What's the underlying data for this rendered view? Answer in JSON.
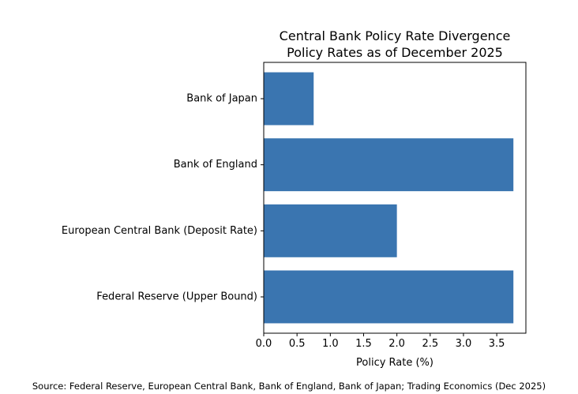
{
  "chart_data": {
    "type": "bar",
    "orientation": "horizontal",
    "title": "Central Bank Policy Rate Divergence",
    "subtitle": "Policy Rates as of December 2025",
    "xlabel": "Policy Rate (%)",
    "ylabel": "",
    "categories": [
      "Federal Reserve (Upper Bound)",
      "European Central Bank (Deposit Rate)",
      "Bank of England",
      "Bank of Japan"
    ],
    "values": [
      3.75,
      2.0,
      3.75,
      0.75
    ],
    "xlim": [
      0,
      3.9375
    ],
    "xticks": [
      "0.0",
      "0.5",
      "1.0",
      "1.5",
      "2.0",
      "2.5",
      "3.0",
      "3.5"
    ],
    "grid": false,
    "bar_color": "#3a75b0"
  },
  "source_note": "Source: Federal Reserve, European Central Bank, Bank of England, Bank of Japan; Trading Economics (Dec 2025)"
}
